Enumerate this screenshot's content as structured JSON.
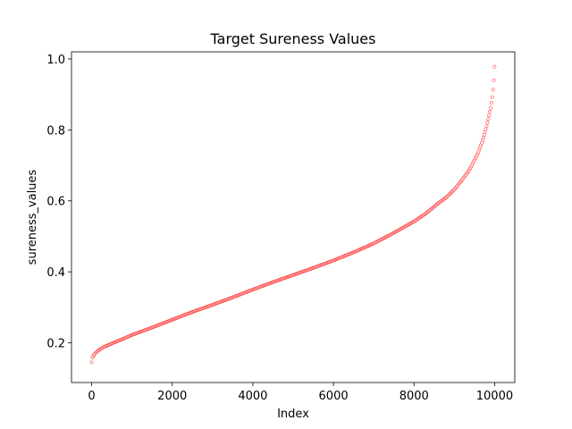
{
  "chart_data": {
    "type": "scatter",
    "title": "Target Sureness Values",
    "xlabel": "Index",
    "ylabel": "sureness_values",
    "xlim": [
      -500,
      10500
    ],
    "ylim": [
      0.088,
      1.02
    ],
    "xticks": [
      0,
      2000,
      4000,
      6000,
      8000,
      10000
    ],
    "yticks": [
      0.2,
      0.4,
      0.6,
      0.8,
      1.0
    ],
    "ytick_labels": [
      "0.2",
      "0.4",
      "0.6",
      "0.8",
      "1.0"
    ],
    "grid": false,
    "marker_color": "#ff0000",
    "marker_fill": "#ffffff",
    "n_points": 10000,
    "series": [
      {
        "x": [
          0,
          20,
          50,
          100,
          200,
          300,
          500,
          800,
          1000,
          1500,
          2000,
          2500,
          3000,
          3500,
          4000,
          4500,
          5000,
          5500,
          6000,
          6500,
          7000,
          7500,
          8000,
          8300,
          8600,
          8800,
          9000,
          9200,
          9400,
          9500,
          9600,
          9700,
          9800,
          9850,
          9900,
          9950,
          9980,
          10000
        ],
        "y": [
          0.145,
          0.158,
          0.165,
          0.172,
          0.181,
          0.188,
          0.198,
          0.212,
          0.222,
          0.243,
          0.265,
          0.287,
          0.307,
          0.328,
          0.35,
          0.371,
          0.391,
          0.411,
          0.432,
          0.455,
          0.48,
          0.51,
          0.542,
          0.565,
          0.593,
          0.61,
          0.632,
          0.66,
          0.692,
          0.715,
          0.738,
          0.77,
          0.81,
          0.835,
          0.862,
          0.9,
          0.94,
          0.98
        ]
      }
    ]
  }
}
